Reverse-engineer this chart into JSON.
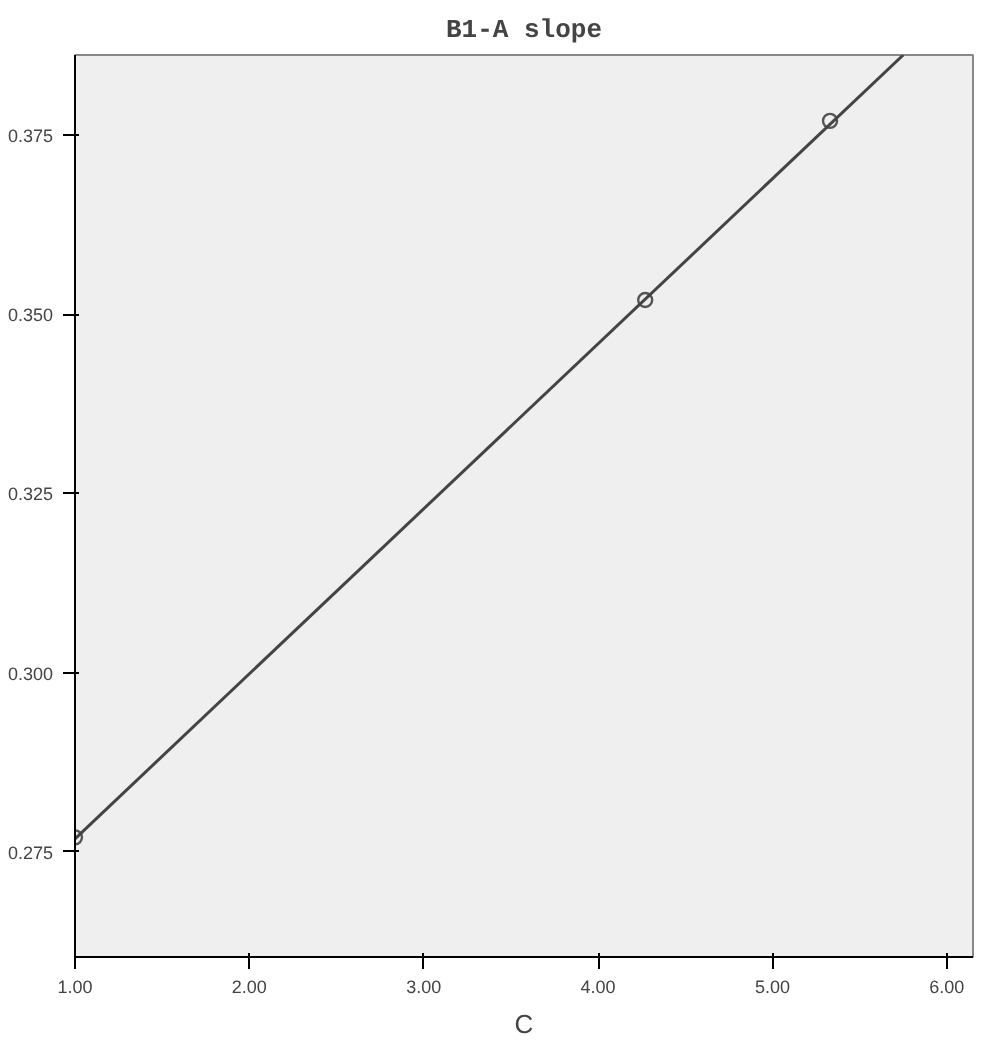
{
  "chart_data": {
    "type": "scatter",
    "title": "B1-A slope",
    "xlabel": "C",
    "xlim": [
      1,
      6.15
    ],
    "ylim": [
      0.2603,
      0.3862
    ],
    "xticks": [
      {
        "value": 1,
        "label": "1.00"
      },
      {
        "value": 2,
        "label": "2.00"
      },
      {
        "value": 3,
        "label": "3.00"
      },
      {
        "value": 4,
        "label": "4.00"
      },
      {
        "value": 5,
        "label": "5.00"
      },
      {
        "value": 6,
        "label": "6.00"
      }
    ],
    "yticks": [
      {
        "value": 0.275,
        "label": "0.275"
      },
      {
        "value": 0.3,
        "label": "0.300"
      },
      {
        "value": 0.325,
        "label": "0.325"
      },
      {
        "value": 0.35,
        "label": "0.350"
      },
      {
        "value": 0.375,
        "label": "0.375"
      }
    ],
    "grid": false,
    "series": [
      {
        "marker": "circle",
        "color": "#555555",
        "x": [
          1.0,
          4.27,
          5.33
        ],
        "values": [
          0.277,
          0.352,
          0.377
        ]
      },
      {
        "type": "line",
        "color": "#444444",
        "x": [
          1.0,
          5.75
        ],
        "values": [
          0.2768,
          0.3862
        ]
      }
    ]
  }
}
